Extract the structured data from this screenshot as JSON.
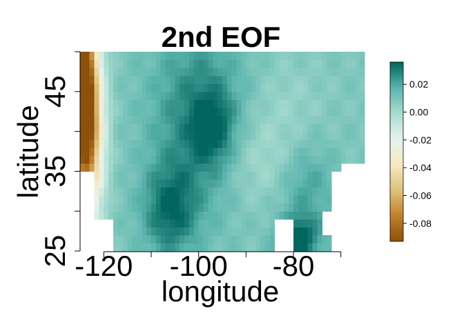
{
  "chart_data": {
    "type": "heatmap",
    "title": "2nd EOF",
    "xlabel": "longitude",
    "ylabel": "latitude",
    "xlim": [
      -125,
      -65
    ],
    "ylim": [
      25,
      50
    ],
    "x_ticks": [
      {
        "value": -120,
        "label": "-120"
      },
      {
        "value": -100,
        "label": "-100"
      },
      {
        "value": -80,
        "label": "-80"
      }
    ],
    "x_minor_ticks": [
      -110,
      -90,
      -70
    ],
    "y_ticks": [
      {
        "value": 25,
        "label": "25"
      },
      {
        "value": 35,
        "label": "35"
      },
      {
        "value": 45,
        "label": "45"
      }
    ],
    "y_minor_ticks": [
      30,
      40,
      50
    ],
    "colorbar": {
      "range": [
        -0.093,
        0.036
      ],
      "ticks": [
        {
          "value": 0.02,
          "label": "0.02"
        },
        {
          "value": 0.0,
          "label": "0.00"
        },
        {
          "value": -0.02,
          "label": "-0.02"
        },
        {
          "value": -0.04,
          "label": "-0.04"
        },
        {
          "value": -0.06,
          "label": "-0.06"
        },
        {
          "value": -0.08,
          "label": "-0.08"
        }
      ],
      "colors": [
        "#8c510a",
        "#bf812d",
        "#dfc27d",
        "#f6e8c3",
        "#e4f3ef",
        "#a8dbcf",
        "#5ab4ac",
        "#01665e"
      ]
    },
    "missing_regions": [
      {
        "lon": [
          -125,
          -122
        ],
        "lat": [
          25,
          34.5
        ]
      },
      {
        "lon": [
          -122,
          -118
        ],
        "lat": [
          25,
          29
        ]
      },
      {
        "lon": [
          -84,
          -80
        ],
        "lat": [
          25,
          29
        ]
      },
      {
        "lon": [
          -74,
          -69
        ],
        "lat": [
          27.5,
          30
        ]
      },
      {
        "lon": [
          -72,
          -70
        ],
        "lat": [
          25,
          34.5
        ]
      },
      {
        "lon": [
          -70,
          -65
        ],
        "lat": [
          25,
          36
        ]
      }
    ]
  }
}
